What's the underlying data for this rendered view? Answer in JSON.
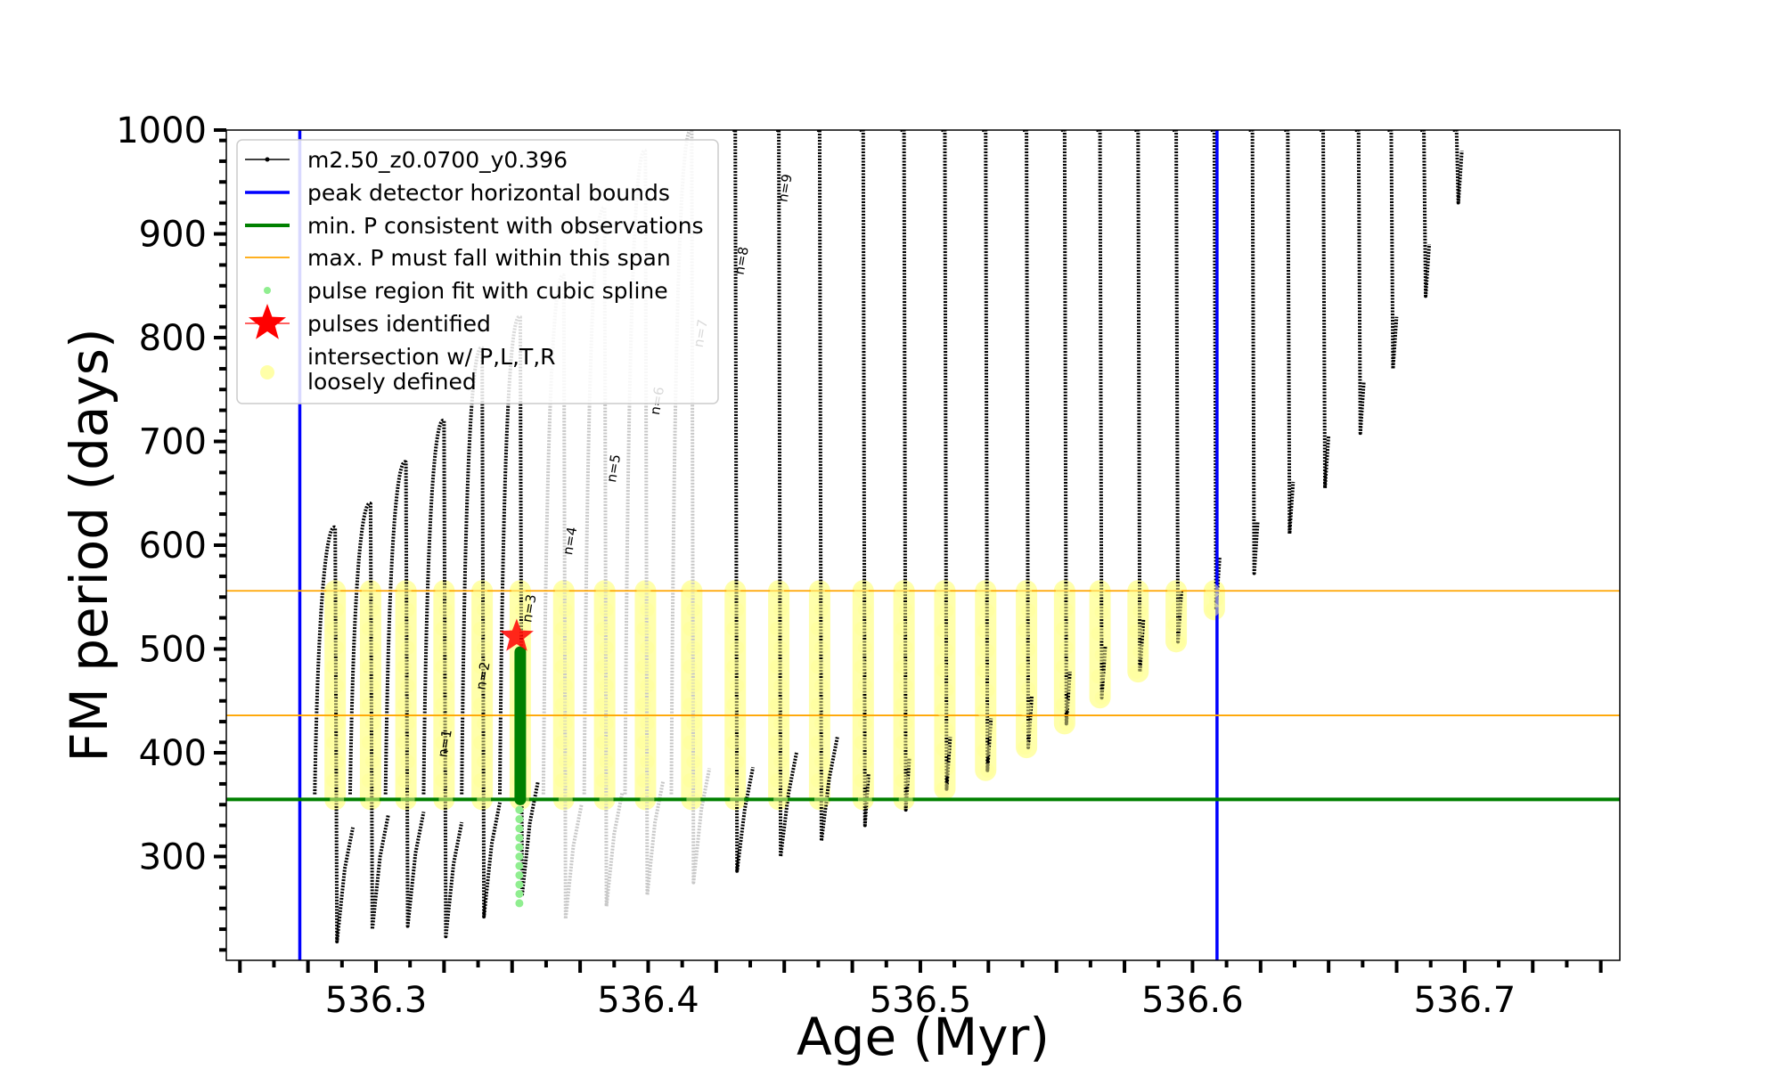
{
  "chart_data": {
    "type": "line",
    "xlabel": "Age (Myr)",
    "ylabel": "FM period (days)",
    "xlim": [
      536.245,
      536.757
    ],
    "ylim": [
      200,
      1000
    ],
    "x_ticks": [
      "536.3",
      "536.4",
      "536.5",
      "536.6",
      "536.7"
    ],
    "x_tick_values": [
      536.3,
      536.4,
      536.5,
      536.6,
      536.7
    ],
    "y_ticks": [
      "300",
      "400",
      "500",
      "600",
      "700",
      "800",
      "900",
      "1000"
    ],
    "y_tick_values": [
      300,
      400,
      500,
      600,
      700,
      800,
      900,
      1000
    ],
    "legend_position": "upper-left",
    "legend": [
      {
        "label": "m2.50_z0.0700_y0.396",
        "kind": "line-dot",
        "color": "#000000"
      },
      {
        "label": "peak detector horizontal bounds",
        "kind": "line",
        "color": "#0000ff"
      },
      {
        "label": "min. P consistent with observations",
        "kind": "line",
        "color": "#008000"
      },
      {
        "label": "max. P must fall within this span",
        "kind": "thin-line",
        "color": "#ffa500"
      },
      {
        "label": "pulse region fit with cubic spline",
        "kind": "dot",
        "color": "#90ee90"
      },
      {
        "label": "pulses identified",
        "kind": "star",
        "color": "#ff0000"
      },
      {
        "label": "intersection w/ P,L,T,R",
        "label2": "loosely defined",
        "kind": "circle",
        "color": "#ffff99"
      }
    ],
    "vertical_bounds": [
      536.272,
      536.609
    ],
    "min_period": 355,
    "max_period_span": [
      436,
      556
    ],
    "pulses": [
      {
        "x": 536.285,
        "peak": 617,
        "min": 218,
        "grey": false
      },
      {
        "x": 536.298,
        "peak": 640,
        "min": 230,
        "grey": false
      },
      {
        "x": 536.311,
        "peak": 680,
        "min": 233,
        "grey": false
      },
      {
        "x": 536.325,
        "peak": 720,
        "min": 223,
        "grey": false
      },
      {
        "x": 536.339,
        "peak": 790,
        "min": 242,
        "grey": false
      },
      {
        "x": 536.353,
        "peak": 820,
        "min": 262,
        "grey": false
      },
      {
        "x": 536.369,
        "peak": 860,
        "min": 240,
        "grey": true
      },
      {
        "x": 536.384,
        "peak": 925,
        "min": 252,
        "grey": true
      },
      {
        "x": 536.399,
        "peak": 980,
        "min": 263,
        "grey": true
      },
      {
        "x": 536.416,
        "peak": 1000,
        "min": 275,
        "grey": true
      },
      {
        "x": 536.432,
        "peak": 1000,
        "min": 286,
        "grey": false
      },
      {
        "x": 536.448,
        "peak": 1000,
        "min": 300,
        "grey": false
      },
      {
        "x": 536.463,
        "peak": 1000,
        "min": 315,
        "grey": false
      },
      {
        "x": 536.479,
        "peak": 1000,
        "min": 330,
        "grey": false
      },
      {
        "x": 536.494,
        "peak": 1000,
        "min": 345,
        "grey": false
      },
      {
        "x": 536.509,
        "peak": 1000,
        "min": 365,
        "grey": false
      },
      {
        "x": 536.524,
        "peak": 1000,
        "min": 383,
        "grey": false
      },
      {
        "x": 536.539,
        "peak": 1000,
        "min": 405,
        "grey": false
      },
      {
        "x": 536.553,
        "peak": 1000,
        "min": 428,
        "grey": false
      },
      {
        "x": 536.566,
        "peak": 1000,
        "min": 453,
        "grey": false
      },
      {
        "x": 536.58,
        "peak": 1000,
        "min": 478,
        "grey": false
      },
      {
        "x": 536.594,
        "peak": 1000,
        "min": 507,
        "grey": false
      },
      {
        "x": 536.608,
        "peak": 1000,
        "min": 538,
        "grey": false
      },
      {
        "x": 536.622,
        "peak": 1000,
        "min": 573,
        "grey": false
      },
      {
        "x": 536.635,
        "peak": 1000,
        "min": 611,
        "grey": false
      },
      {
        "x": 536.648,
        "peak": 1000,
        "min": 655,
        "grey": false
      },
      {
        "x": 536.661,
        "peak": 1000,
        "min": 708,
        "grey": false
      },
      {
        "x": 536.673,
        "peak": 1000,
        "min": 770,
        "grey": false
      },
      {
        "x": 536.685,
        "peak": 1000,
        "min": 840,
        "grey": false
      },
      {
        "x": 536.697,
        "peak": 1000,
        "min": 930,
        "grey": false
      }
    ],
    "highlighted_pulse": {
      "x": 536.353,
      "spline_from": 355,
      "spline_to": 497,
      "tail_to": 250,
      "star_y": 512
    },
    "n_labels": [
      {
        "text": "n=1",
        "x": 536.326,
        "y": 395
      },
      {
        "text": "n=2",
        "x": 536.34,
        "y": 460
      },
      {
        "text": "n=3",
        "x": 536.357,
        "y": 525
      },
      {
        "text": "n=4",
        "x": 536.372,
        "y": 590
      },
      {
        "text": "n=5",
        "x": 536.388,
        "y": 660
      },
      {
        "text": "n=6",
        "x": 536.404,
        "y": 725
      },
      {
        "text": "n=7",
        "x": 536.42,
        "y": 790
      },
      {
        "text": "n=8",
        "x": 536.435,
        "y": 860
      },
      {
        "text": "n=9",
        "x": 536.451,
        "y": 930
      }
    ]
  }
}
